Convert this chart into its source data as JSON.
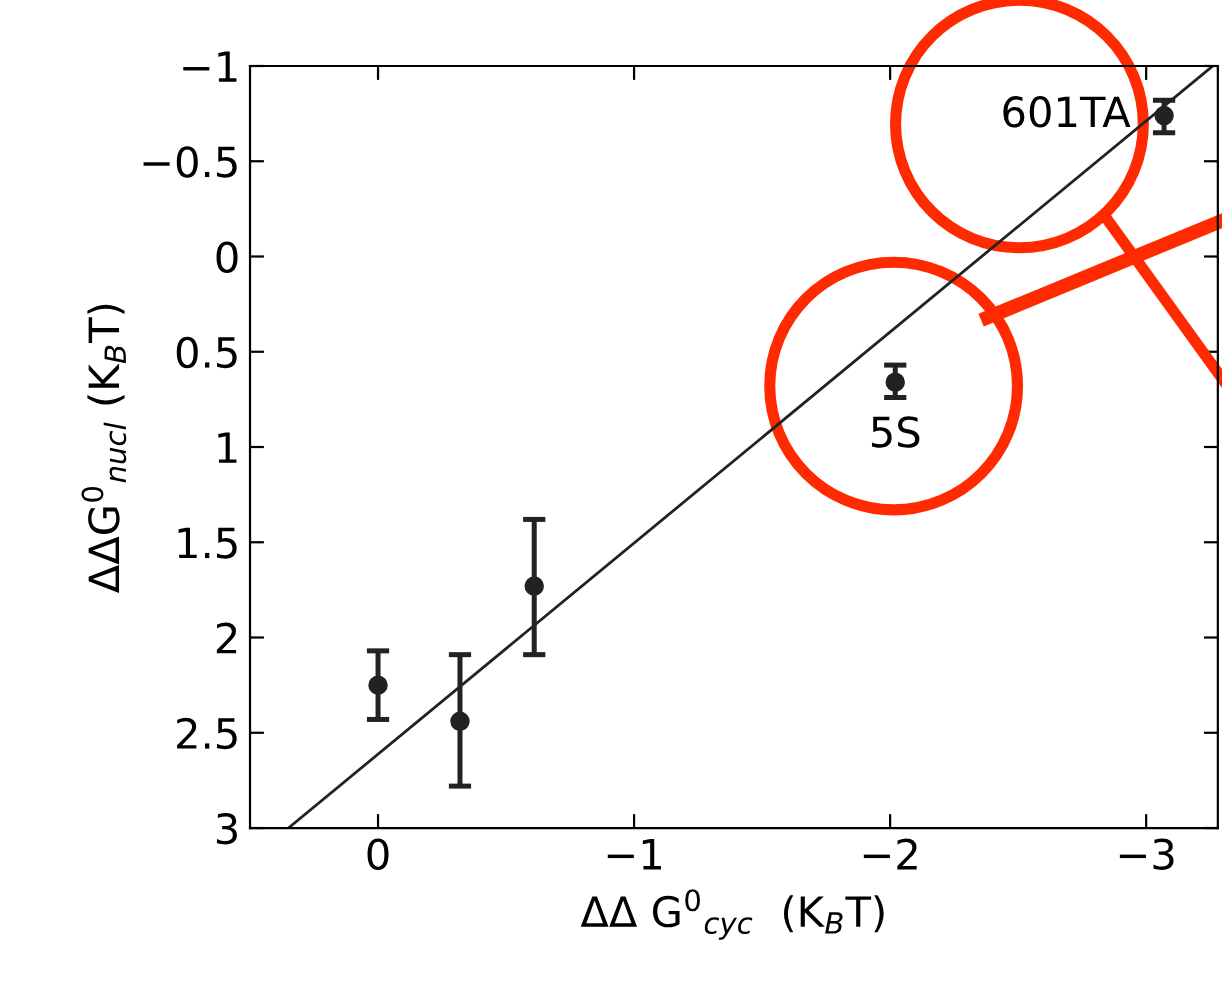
{
  "chart_data": {
    "type": "scatter",
    "xlabel": "ΔΔ G$^{0}$$_{cyc}$  (K$_{B}$T)",
    "ylabel": "ΔΔG$^{0}$$_{nucl}$ (K$_{B}$T)",
    "xlim": [
      0.5,
      -3.28
    ],
    "ylim": [
      3,
      -1
    ],
    "xticks": [
      {
        "value": 0,
        "label": "0"
      },
      {
        "value": -1,
        "label": "−1"
      },
      {
        "value": -2,
        "label": "−2"
      },
      {
        "value": -3,
        "label": "−3"
      }
    ],
    "yticks": [
      {
        "value": -1,
        "label": "−1"
      },
      {
        "value": -0.5,
        "label": "−0.5"
      },
      0,
      0.5,
      1,
      1.5,
      2,
      2.5,
      3
    ],
    "grid": false,
    "series": [
      {
        "marker": "circle",
        "color": "#222222",
        "x": [
          0,
          -0.32,
          -0.61,
          -2.02,
          -3.07
        ],
        "values": [
          2.25,
          2.44,
          1.73,
          0.66,
          -0.74
        ],
        "errors": [
          [
            2.07,
            2.43
          ],
          [
            2.09,
            2.78
          ],
          [
            1.38,
            2.09
          ],
          [
            0.57,
            0.74
          ],
          [
            -0.82,
            -0.65
          ]
        ]
      },
      {
        "type": "line",
        "color": "#222222",
        "x": [
          0.35,
          -3.26
        ],
        "values": [
          3,
          -1
        ]
      }
    ],
    "annotations": [
      {
        "text": "601TA",
        "x": -3.07,
        "y": -0.74
      },
      {
        "text": "5S",
        "x": -2.02,
        "y": 0.66
      }
    ]
  }
}
